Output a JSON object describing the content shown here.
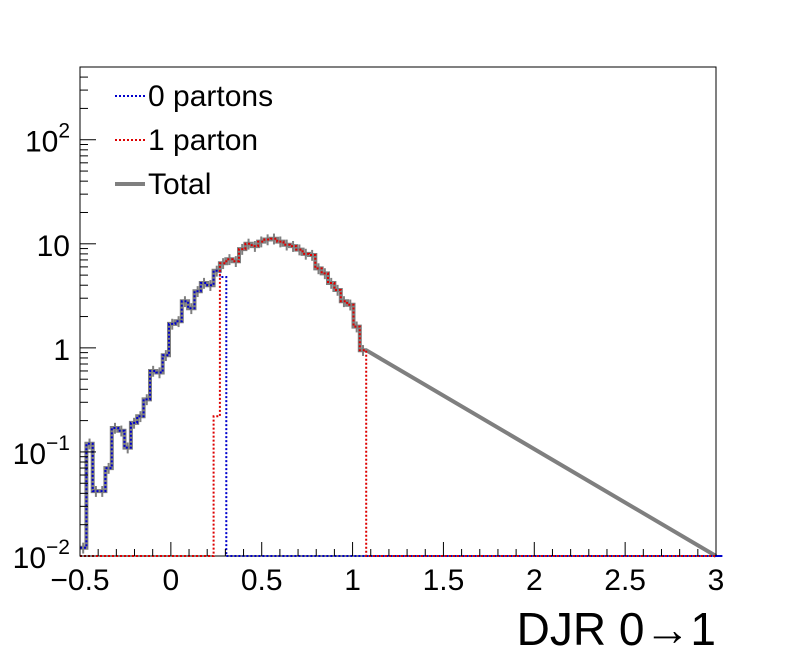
{
  "chart_data": {
    "type": "line",
    "title": "",
    "xlabel": "DJR 0→1",
    "ylabel": "",
    "xlim": [
      -0.5,
      3
    ],
    "ylim": [
      0.01,
      500
    ],
    "y_scale": "log",
    "grid": false,
    "legend_position": "top-left",
    "x_ticks": [
      "−0.5",
      "0",
      "0.5",
      "1",
      "1.5",
      "2",
      "2.5",
      "3"
    ],
    "x_tick_values": [
      -0.5,
      0,
      0.5,
      1,
      1.5,
      2,
      2.5,
      3
    ],
    "y_ticks": [
      {
        "value": 0.01,
        "base": "10",
        "exp": "−2"
      },
      {
        "value": 0.1,
        "base": "10",
        "exp": "−1"
      },
      {
        "value": 1,
        "base": "1",
        "exp": ""
      },
      {
        "value": 10,
        "base": "10",
        "exp": ""
      },
      {
        "value": 100,
        "base": "10",
        "exp": "2"
      }
    ],
    "bin_edges_start": -0.5,
    "bin_width": 0.035,
    "series": [
      {
        "name": "0 partons",
        "color": "#0000cc",
        "style": "dotted",
        "values": [
          0.012,
          0.12,
          0.042,
          0.042,
          0.07,
          0.17,
          0.16,
          0.11,
          0.19,
          0.22,
          0.32,
          0.6,
          0.58,
          0.85,
          1.7,
          1.8,
          2.8,
          2.4,
          3.5,
          4.2,
          4.0,
          5.5,
          4.8,
          0,
          0,
          0,
          0,
          0,
          0,
          0,
          0,
          0,
          0,
          0,
          0,
          0,
          0,
          0,
          0,
          0,
          0,
          0,
          0,
          0,
          0,
          0,
          0,
          0,
          0,
          0,
          0,
          0,
          0,
          0,
          0,
          0,
          0,
          0,
          0,
          0,
          0,
          0,
          0,
          0,
          0,
          0,
          0,
          0,
          0,
          0,
          0,
          0,
          0,
          0,
          0,
          0,
          0,
          0,
          0,
          0,
          0,
          0,
          0,
          0,
          0,
          0,
          0,
          0,
          0,
          0,
          0,
          0,
          0,
          0,
          0,
          0,
          0,
          0,
          0,
          0,
          0,
          0
        ]
      },
      {
        "name": "1 parton",
        "color": "#dd0000",
        "style": "dotted",
        "values": [
          0,
          0,
          0,
          0,
          0,
          0,
          0,
          0,
          0,
          0,
          0,
          0,
          0,
          0,
          0,
          0,
          0,
          0,
          0,
          0,
          0,
          0.22,
          6.5,
          7.1,
          6.8,
          8.9,
          10.0,
          9.5,
          10.5,
          11.0,
          11.2,
          10.5,
          9.8,
          9.5,
          8.8,
          8.0,
          7.8,
          5.8,
          5.2,
          4.2,
          3.6,
          2.8,
          2.6,
          1.6,
          0.95,
          0,
          0,
          0,
          0,
          0,
          0,
          0,
          0,
          0,
          0,
          0,
          0,
          0,
          0,
          0,
          0,
          0,
          0,
          0,
          0,
          0,
          0,
          0,
          0,
          0,
          0,
          0,
          0,
          0,
          0,
          0,
          0,
          0,
          0,
          0,
          0,
          0,
          0,
          0,
          0,
          0,
          0,
          0,
          0,
          0,
          0,
          0,
          0,
          0,
          0,
          0,
          0,
          0,
          0,
          0
        ]
      },
      {
        "name": "Total",
        "color": "#7f7f7f",
        "style": "solid",
        "values": [
          0.012,
          0.12,
          0.042,
          0.042,
          0.07,
          0.17,
          0.16,
          0.11,
          0.19,
          0.22,
          0.32,
          0.6,
          0.58,
          0.85,
          1.7,
          1.8,
          2.8,
          2.4,
          3.5,
          4.2,
          4.0,
          5.5,
          6.5,
          7.1,
          6.8,
          8.9,
          10.0,
          9.5,
          10.5,
          11.0,
          11.2,
          10.5,
          9.8,
          9.5,
          8.8,
          8.0,
          7.8,
          5.8,
          5.2,
          4.2,
          3.6,
          2.8,
          2.6,
          1.6,
          0.95
        ]
      }
    ]
  }
}
